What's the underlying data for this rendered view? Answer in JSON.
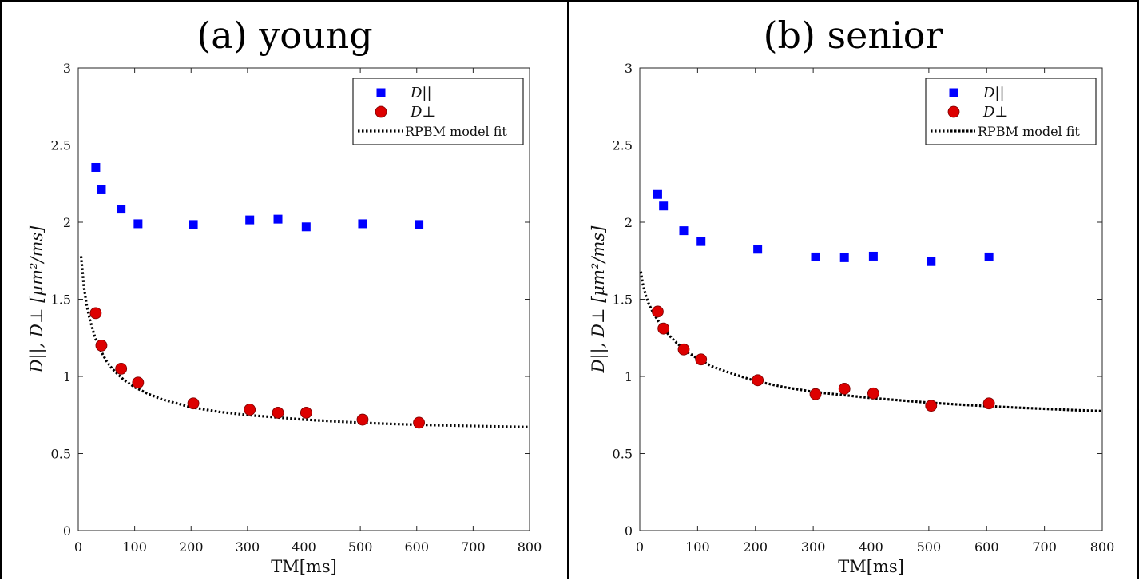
{
  "chart_data": [
    {
      "type": "scatter",
      "title": "(a) young",
      "xlabel": "TM[ms]",
      "ylabel": "D||,   D⊥   [μm²/ms]",
      "xlim": [
        0,
        800
      ],
      "ylim": [
        0,
        3
      ],
      "xticks": [
        "0",
        "100",
        "200",
        "300",
        "400",
        "500",
        "600",
        "700",
        "800"
      ],
      "yticks": [
        "0",
        "0.5",
        "1",
        "1.5",
        "2",
        "2.5",
        "3"
      ],
      "legend_position": "top-right",
      "legend": [
        "D||",
        "D⊥",
        "RPBM model fit"
      ],
      "series": [
        {
          "name": "D||",
          "marker": "square",
          "color": "#0000ff",
          "x": [
            31,
            41,
            76,
            106,
            204,
            304,
            354,
            404,
            504,
            604
          ],
          "y": [
            2.355,
            2.21,
            2.085,
            1.99,
            1.985,
            2.015,
            2.02,
            1.97,
            1.99,
            1.985
          ]
        },
        {
          "name": "D⊥",
          "marker": "circle",
          "color": "#dd0000",
          "x": [
            31,
            41,
            76,
            106,
            204,
            304,
            354,
            404,
            504,
            604
          ],
          "y": [
            1.41,
            1.2,
            1.05,
            0.96,
            0.825,
            0.785,
            0.765,
            0.765,
            0.72,
            0.7
          ]
        },
        {
          "name": "RPBM model fit",
          "type": "fit",
          "color": "#000000",
          "x": [
            5,
            10,
            15,
            20,
            30,
            40,
            50,
            60,
            80,
            100,
            125,
            150,
            200,
            250,
            300,
            350,
            400,
            450,
            500,
            550,
            600,
            650,
            700,
            750,
            800
          ],
          "y": [
            1.78,
            1.58,
            1.46,
            1.375,
            1.25,
            1.165,
            1.1,
            1.05,
            0.98,
            0.93,
            0.885,
            0.85,
            0.8,
            0.77,
            0.75,
            0.735,
            0.72,
            0.71,
            0.7,
            0.693,
            0.687,
            0.683,
            0.679,
            0.675,
            0.672
          ]
        }
      ]
    },
    {
      "type": "scatter",
      "title": "(b) senior",
      "xlabel": "TM[ms]",
      "ylabel": "D||,   D⊥   [μm²/ms]",
      "xlim": [
        0,
        800
      ],
      "ylim": [
        0,
        3
      ],
      "xticks": [
        "0",
        "100",
        "200",
        "300",
        "400",
        "500",
        "600",
        "700",
        "800"
      ],
      "yticks": [
        "0",
        "0.5",
        "1",
        "1.5",
        "2",
        "2.5",
        "3"
      ],
      "legend_position": "top-right",
      "legend": [
        "D||",
        "D⊥",
        "RPBM model fit"
      ],
      "series": [
        {
          "name": "D||",
          "marker": "square",
          "color": "#0000ff",
          "x": [
            31,
            41,
            76,
            106,
            204,
            304,
            354,
            404,
            504,
            604
          ],
          "y": [
            2.18,
            2.105,
            1.945,
            1.875,
            1.825,
            1.775,
            1.77,
            1.78,
            1.745,
            1.775
          ]
        },
        {
          "name": "D⊥",
          "marker": "circle",
          "color": "#dd0000",
          "x": [
            31,
            41,
            76,
            106,
            204,
            304,
            354,
            404,
            504,
            604
          ],
          "y": [
            1.42,
            1.31,
            1.175,
            1.11,
            0.975,
            0.885,
            0.92,
            0.89,
            0.81,
            0.825
          ]
        },
        {
          "name": "RPBM model fit",
          "type": "fit",
          "color": "#000000",
          "x": [
            2,
            5,
            10,
            15,
            20,
            30,
            40,
            50,
            60,
            80,
            100,
            125,
            150,
            200,
            250,
            300,
            350,
            400,
            450,
            500,
            550,
            600,
            650,
            700,
            750,
            800
          ],
          "y": [
            1.68,
            1.605,
            1.53,
            1.475,
            1.435,
            1.37,
            1.315,
            1.27,
            1.23,
            1.165,
            1.115,
            1.065,
            1.03,
            0.97,
            0.93,
            0.9,
            0.88,
            0.86,
            0.845,
            0.83,
            0.818,
            0.808,
            0.798,
            0.79,
            0.782,
            0.775
          ]
        }
      ]
    }
  ]
}
